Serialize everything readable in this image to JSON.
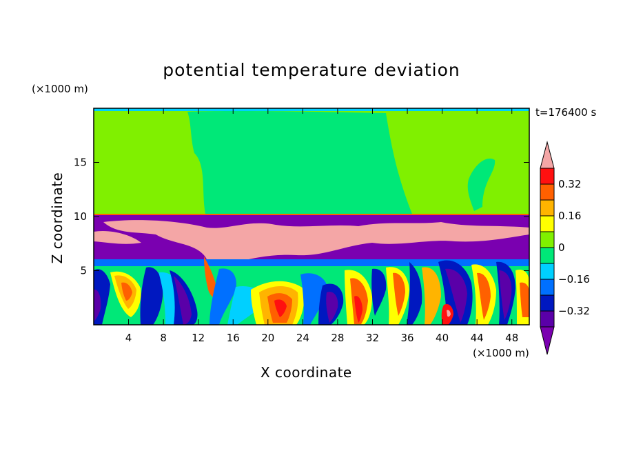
{
  "chart_data": {
    "type": "heatmap",
    "title": "potential temperature deviation",
    "xlabel": "X coordinate",
    "ylabel": "Z coordinate",
    "x_unit": "(×1000 m)",
    "y_unit": "(×1000 m)",
    "time_label": "t=176400 s",
    "xlim": [
      0,
      50
    ],
    "ylim": [
      0,
      20
    ],
    "x_ticks": [
      4,
      8,
      12,
      16,
      20,
      24,
      28,
      32,
      36,
      40,
      44,
      48
    ],
    "y_ticks": [
      5,
      10,
      15
    ],
    "colorbar": {
      "levels": [
        -0.4,
        -0.32,
        -0.24,
        -0.16,
        -0.08,
        0,
        0.08,
        0.16,
        0.24,
        0.32,
        0.4
      ],
      "tick_values": [
        0.32,
        0.16,
        0,
        -0.16,
        -0.32
      ],
      "tick_labels": [
        "0.32",
        "0.16",
        "0",
        "−0.16",
        "−0.32"
      ],
      "colors": [
        "#7a00b0",
        "#5a00a8",
        "#0018c0",
        "#0070ff",
        "#00d0ff",
        "#00e878",
        "#80f000",
        "#ffff00",
        "#ffb400",
        "#ff6000",
        "#ff1010",
        "#f4a6a6"
      ],
      "extend": "both"
    },
    "regions": {
      "upper_layer_z_range": [
        10.3,
        20
      ],
      "upper_layer_values": "0 to 0.08 (with -0.08 to 0 core between x≈10 and x≈37)",
      "inversion_layer_z_range": [
        6.5,
        10.3
      ],
      "inversion_layer_values": "alternating below -0.4 and above 0.4",
      "convective_layer_z_range": [
        0,
        6.5
      ],
      "convective_layer_values": "-0.4 to 0.4 convective plumes"
    }
  }
}
